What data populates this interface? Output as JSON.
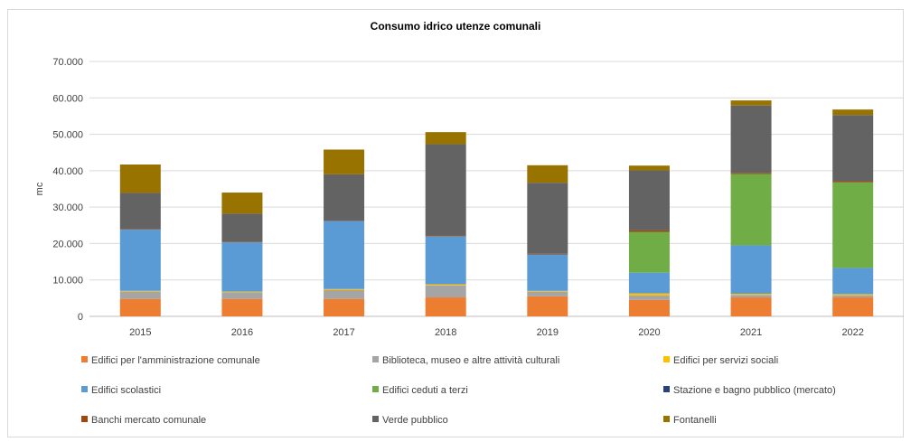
{
  "chart_data": {
    "type": "bar",
    "stacked": true,
    "title": "Consumo idrico utenze comunali",
    "xlabel": "",
    "ylabel": "mc",
    "ylim": [
      0,
      70000
    ],
    "y_ticks": [
      "0",
      "10.000",
      "20.000",
      "30.000",
      "40.000",
      "50.000",
      "60.000",
      "70.000"
    ],
    "grid": true,
    "legend_position": "bottom",
    "categories": [
      "2015",
      "2016",
      "2017",
      "2018",
      "2019",
      "2020",
      "2021",
      "2022"
    ],
    "series": [
      {
        "name": "Edifici per l'amministrazione comunale",
        "color": "#ED7D31",
        "values": [
          4800,
          4800,
          4800,
          5200,
          5500,
          4500,
          5200,
          5200
        ]
      },
      {
        "name": "Biblioteca, museo e altre attività culturali",
        "color": "#A5A5A5",
        "values": [
          2000,
          1800,
          2400,
          3300,
          1300,
          1200,
          700,
          600
        ]
      },
      {
        "name": "Edifici per servizi sociali",
        "color": "#FFC000",
        "values": [
          200,
          200,
          300,
          300,
          200,
          600,
          300,
          300
        ]
      },
      {
        "name": "Edifici scolastici",
        "color": "#5B9BD5",
        "values": [
          16800,
          13500,
          18700,
          13200,
          10000,
          5700,
          13300,
          7200
        ]
      },
      {
        "name": "Edifici ceduti a terzi",
        "color": "#70AD47",
        "values": [
          0,
          0,
          0,
          0,
          0,
          11200,
          19600,
          23500
        ]
      },
      {
        "name": "Stazione e bagno pubblico (mercato)",
        "color": "#264478",
        "values": [
          0,
          0,
          0,
          0,
          0,
          0,
          0,
          0
        ]
      },
      {
        "name": "Banchi mercato comunale",
        "color": "#9E480E",
        "values": [
          100,
          100,
          100,
          200,
          200,
          400,
          300,
          300
        ]
      },
      {
        "name": "Verde pubblico",
        "color": "#636363",
        "values": [
          10000,
          7800,
          12700,
          25100,
          19500,
          16500,
          18500,
          18200
        ]
      },
      {
        "name": "Fontanelli",
        "color": "#997300",
        "values": [
          7800,
          5800,
          6800,
          3300,
          4800,
          1300,
          1400,
          1500
        ]
      }
    ]
  }
}
